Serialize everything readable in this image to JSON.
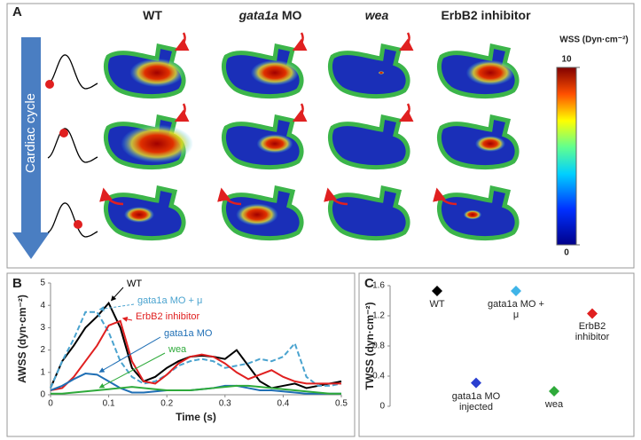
{
  "panel_a": {
    "panel_label": "A",
    "columns": [
      [
        {
          "text": "WT",
          "italic": false
        }
      ],
      [
        {
          "text": "gata1a",
          "italic": true
        },
        {
          "text": " MO",
          "italic": false
        }
      ],
      [
        {
          "text": "wea",
          "italic": true
        }
      ],
      [
        {
          "text": "ErbB2 inhibitor",
          "italic": false
        }
      ]
    ],
    "row_axis_label": "Cardiac cycle",
    "colorbar": {
      "label": "WSS (Dyn·cm⁻²)",
      "lim": [
        0,
        10
      ],
      "ticks": [
        0,
        10
      ]
    }
  },
  "chart_data": [
    {
      "type": "line",
      "panel_label": "B",
      "x_label": "Time (s)",
      "y_label": "AWSS (dyn·cm⁻²)",
      "x": [
        0,
        0.02,
        0.04,
        0.06,
        0.08,
        0.1,
        0.12,
        0.14,
        0.16,
        0.18,
        0.2,
        0.22,
        0.24,
        0.26,
        0.28,
        0.3,
        0.32,
        0.34,
        0.36,
        0.38,
        0.4,
        0.42,
        0.44,
        0.46,
        0.48,
        0.5
      ],
      "series": [
        {
          "name": "WT",
          "color": "#000000",
          "dashed": false,
          "values": [
            0.3,
            1.5,
            2.2,
            3.0,
            3.5,
            4.1,
            3.0,
            1.2,
            0.6,
            0.8,
            1.2,
            1.5,
            1.7,
            1.75,
            1.7,
            1.6,
            2.0,
            1.3,
            0.6,
            0.3,
            0.4,
            0.5,
            0.3,
            0.4,
            0.5,
            0.6
          ]
        },
        {
          "name": "gata1a MO + μ",
          "color": "#4aa3cf",
          "dashed": true,
          "values": [
            0.3,
            1.5,
            2.5,
            3.7,
            3.7,
            2.8,
            1.5,
            0.8,
            0.5,
            0.6,
            0.9,
            1.3,
            1.5,
            1.6,
            1.5,
            1.2,
            1.3,
            1.4,
            1.6,
            1.5,
            1.7,
            2.3,
            0.8,
            0.4,
            0.4,
            0.5
          ]
        },
        {
          "name": "ErbB2 inhibitor",
          "color": "#e02020",
          "dashed": false,
          "values": [
            0.2,
            0.3,
            0.8,
            1.5,
            2.2,
            3.1,
            3.3,
            1.5,
            0.6,
            0.5,
            0.9,
            1.4,
            1.7,
            1.8,
            1.7,
            1.4,
            1.0,
            0.7,
            0.9,
            1.1,
            0.8,
            0.6,
            0.5,
            0.5,
            0.5,
            0.5
          ]
        },
        {
          "name": "gata1a MO",
          "color": "#1f6fb5",
          "dashed": false,
          "values": [
            0.2,
            0.4,
            0.7,
            0.95,
            0.9,
            0.6,
            0.3,
            0.1,
            0.1,
            0.15,
            0.2,
            0.2,
            0.2,
            0.25,
            0.3,
            0.4,
            0.4,
            0.3,
            0.2,
            0.2,
            0.15,
            0.1,
            0.05,
            0.05,
            0.05,
            0.05
          ]
        },
        {
          "name": "wea",
          "color": "#2eaa3a",
          "dashed": false,
          "values": [
            0.05,
            0.05,
            0.1,
            0.15,
            0.2,
            0.25,
            0.3,
            0.35,
            0.3,
            0.25,
            0.2,
            0.2,
            0.2,
            0.25,
            0.3,
            0.35,
            0.4,
            0.4,
            0.35,
            0.3,
            0.25,
            0.2,
            0.15,
            0.1,
            0.05,
            0.05
          ]
        }
      ],
      "xlim": [
        0,
        0.5
      ],
      "xticks": [
        0,
        0.1,
        0.2,
        0.3,
        0.4,
        0.5
      ],
      "ylim": [
        0,
        5
      ],
      "yticks": [
        0,
        1,
        2,
        3,
        4,
        5
      ]
    },
    {
      "type": "scatter",
      "panel_label": "C",
      "y_label": "TWSS (dyn·cm⁻²)",
      "categories": [
        "WT",
        "gata1a MO + μ",
        "ErbB2 inhibitor",
        "gata1a MO injected",
        "wea"
      ],
      "values": [
        1.53,
        1.53,
        1.23,
        0.31,
        0.2
      ],
      "colors": [
        "#000000",
        "#3fb4e8",
        "#e02020",
        "#2a3fd0",
        "#2eaa3a"
      ],
      "ylim": [
        0,
        1.6
      ],
      "yticks": [
        0,
        0.4,
        0.8,
        1.2,
        1.6
      ]
    }
  ]
}
